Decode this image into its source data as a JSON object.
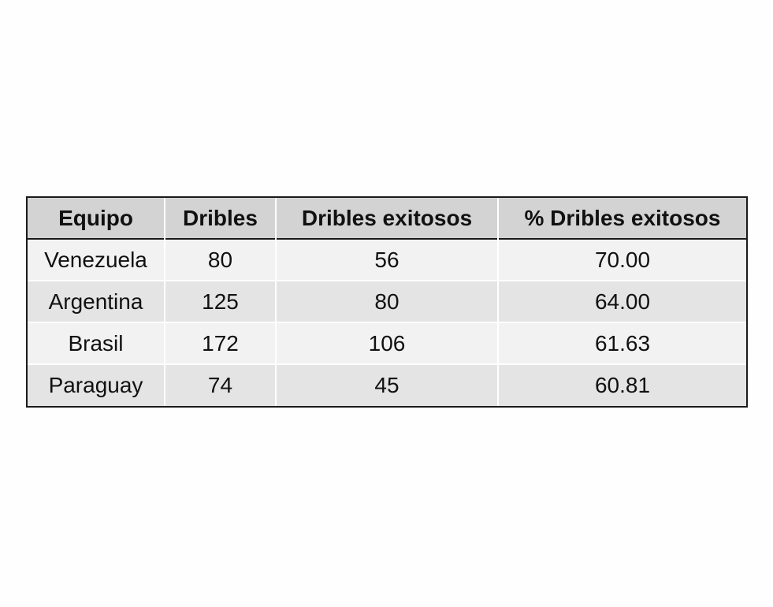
{
  "chart_data": {
    "type": "table",
    "columns": [
      "Equipo",
      "Dribles",
      "Dribles exitosos",
      "% Dribles exitosos"
    ],
    "rows": [
      [
        "Venezuela",
        "80",
        "56",
        "70.00"
      ],
      [
        "Argentina",
        "125",
        "80",
        "64.00"
      ],
      [
        "Brasil",
        "172",
        "106",
        "61.63"
      ],
      [
        "Paraguay",
        "74",
        "45",
        "60.81"
      ]
    ]
  }
}
